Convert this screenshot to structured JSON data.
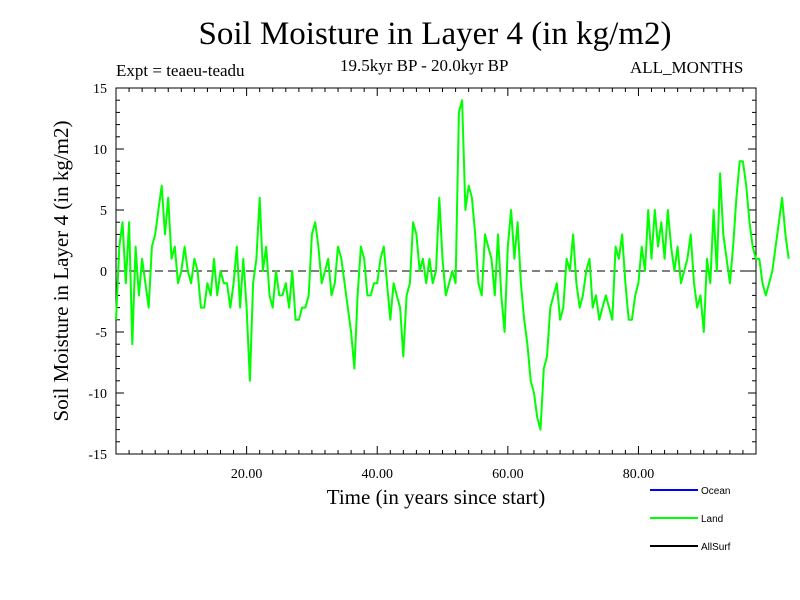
{
  "chart_data": {
    "type": "line",
    "title": "Soil Moisture in Layer 4 (in kg/m2)",
    "subtitle_left": "Expt = teaeu-teadu",
    "subtitle_center": "19.5kyr BP - 20.0kyr BP",
    "subtitle_right": "ALL_MONTHS",
    "xlabel": "Time (in years since start)",
    "ylabel": "Soil Moisture in Layer 4 (in kg/m2)",
    "xlim": [
      0,
      98
    ],
    "ylim": [
      -15,
      15
    ],
    "x_ticks": [
      20,
      40,
      60,
      80
    ],
    "x_tick_labels": [
      "20.00",
      "40.00",
      "60.00",
      "80.00"
    ],
    "y_ticks": [
      -15,
      -10,
      -5,
      0,
      5,
      10,
      15
    ],
    "y_tick_labels": [
      "-15",
      "-10",
      "-5",
      "0",
      "5",
      "10",
      "15"
    ],
    "zero_line": 0,
    "legend": [
      {
        "name": "Ocean",
        "color": "#0000ff"
      },
      {
        "name": "Land",
        "color": "#00ff00"
      },
      {
        "name": "AllSurf",
        "color": "#000000"
      }
    ],
    "legend_position": "bottom-right",
    "series": [
      {
        "name": "Land",
        "color": "#00ff00",
        "x_start": 0,
        "x_step": 0.5,
        "values": [
          -4,
          2,
          4,
          -1,
          4,
          -6,
          2,
          -2,
          1,
          -1,
          -3,
          2,
          3,
          5,
          7,
          3,
          6,
          1,
          2,
          -1,
          0,
          2,
          0,
          -1,
          1,
          0,
          -3,
          -3,
          -1,
          -2,
          1,
          -2,
          0,
          -1,
          -1,
          -3,
          -1,
          2,
          -3,
          1,
          -3,
          -9,
          -1,
          1,
          6,
          0,
          2,
          -2,
          -3,
          0,
          -2,
          -2,
          -1,
          -3,
          0,
          -4,
          -4,
          -3,
          -3,
          -2,
          3,
          4,
          2,
          -1,
          0,
          1,
          -2,
          -1,
          2,
          1,
          -1,
          -3,
          -5,
          -8,
          -2,
          2,
          1,
          -2,
          -2,
          -1,
          -1,
          1,
          2,
          -1,
          -4,
          -1,
          -2,
          -3,
          -7,
          -2,
          -1,
          4,
          3,
          0,
          1,
          -1,
          1,
          -1,
          0,
          6,
          1,
          -2,
          -1,
          0,
          -1,
          13,
          14,
          5,
          7,
          6,
          3,
          -1,
          -2,
          3,
          2,
          1,
          -2,
          3,
          -2,
          -5,
          2,
          5,
          1,
          4,
          -1,
          -4,
          -6,
          -9,
          -10,
          -12,
          -13,
          -8,
          -7,
          -3,
          -2,
          -1,
          -4,
          -3,
          1,
          0,
          3,
          -1,
          -3,
          -2,
          0,
          1,
          -3,
          -2,
          -4,
          -3,
          -2,
          -3,
          -4,
          2,
          1,
          3,
          -1,
          -4,
          -4,
          -2,
          -1,
          2,
          0,
          5,
          1,
          5,
          2,
          4,
          1,
          5,
          2,
          0,
          2,
          -1,
          0,
          1,
          3,
          -1,
          -3,
          -2,
          -5,
          1,
          -1,
          5,
          0,
          8,
          3,
          1,
          -1,
          2,
          6,
          9,
          9,
          7,
          4,
          2,
          1,
          1,
          -1,
          -2,
          -1,
          0,
          2,
          4,
          6,
          3,
          1
        ]
      }
    ]
  }
}
